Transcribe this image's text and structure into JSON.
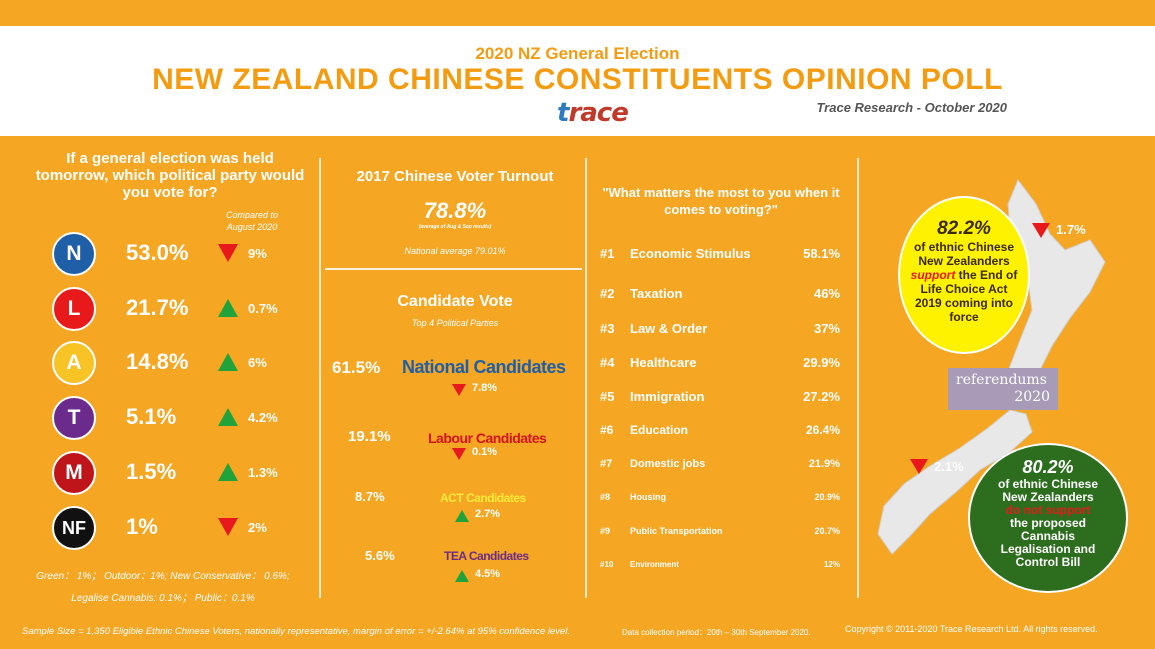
{
  "header": {
    "subtitle": "2020 NZ General Election",
    "title": "NEW ZEALAND CHINESE CONSTITUENTS OPINION POLL",
    "logo": "trace",
    "credit": "Trace Research - October 2020"
  },
  "poll": {
    "question": "If a general election was held tomorrow, which political party would you vote for?",
    "compared_label": "Compared to August 2020",
    "parties": [
      {
        "letter": "N",
        "pct": "53.0%",
        "change": "9%",
        "direction": "down",
        "color": "#1f5fa8"
      },
      {
        "letter": "L",
        "pct": "21.7%",
        "change": "0.7%",
        "direction": "up",
        "color": "#e8191b"
      },
      {
        "letter": "A",
        "pct": "14.8%",
        "change": "6%",
        "direction": "up",
        "color": "#f7c325"
      },
      {
        "letter": "T",
        "pct": "5.1%",
        "change": "4.2%",
        "direction": "up",
        "color": "#6a2b8c"
      },
      {
        "letter": "M",
        "pct": "1.5%",
        "change": "1.3%",
        "direction": "up",
        "color": "#c0141b"
      },
      {
        "letter": "NF",
        "pct": "1%",
        "change": "2%",
        "direction": "down",
        "color": "#111111"
      }
    ],
    "others_line1": "Green： 1%； Outdoor：1%; New Conservative： 0.6%;",
    "others_line2": "Legalise Cannabis: 0.1%； Public：0.1%"
  },
  "turnout": {
    "title": "2017 Chinese Voter Turnout",
    "value": "78.8%",
    "note": "(average of Aug & Sep results)",
    "national": "National average 79.01%"
  },
  "candidate_vote": {
    "title": "Candidate Vote",
    "subtitle": "Top 4 Political Parties",
    "items": [
      {
        "pct": "61.5%",
        "name": "National Candidates",
        "change": "7.8%",
        "direction": "down",
        "color": "#1f5fa8"
      },
      {
        "pct": "19.1%",
        "name": "Labour Candidates",
        "change": "0.1%",
        "direction": "down",
        "color": "#d6141b"
      },
      {
        "pct": "8.7%",
        "name": "ACT Candidates",
        "change": "2.7%",
        "direction": "up",
        "color": "#ffeb3b"
      },
      {
        "pct": "5.6%",
        "name": "TEA Candidates",
        "change": "4.5%",
        "direction": "up",
        "color": "#6a2b8c"
      }
    ]
  },
  "issues": {
    "question": "\"What matters the most to you when it comes to voting?\"",
    "items": [
      {
        "rank": "#1",
        "label": "Economic Stimulus",
        "value": "58.1%"
      },
      {
        "rank": "#2",
        "label": "Taxation",
        "value": "46%"
      },
      {
        "rank": "#3",
        "label": "Law & Order",
        "value": "37%"
      },
      {
        "rank": "#4",
        "label": "Healthcare",
        "value": "29.9%"
      },
      {
        "rank": "#5",
        "label": "Immigration",
        "value": "27.2%"
      },
      {
        "rank": "#6",
        "label": "Education",
        "value": "26.4%"
      },
      {
        "rank": "#7",
        "label": "Domestic jobs",
        "value": "21.9%"
      },
      {
        "rank": "#8",
        "label": "Housing",
        "value": "20.9%"
      },
      {
        "rank": "#9",
        "label": "Public Transportation",
        "value": "20.7%"
      },
      {
        "rank": "#10",
        "label": "Environment",
        "value": "12%"
      }
    ]
  },
  "referendums": {
    "badge_line1": "referendums",
    "badge_line2": "2020",
    "end_of_life": {
      "pct": "82.2%",
      "text1": "of ethnic Chinese New Zealanders",
      "emph": "support",
      "text2": "the End of Life Choice Act 2019 coming into force",
      "change": "1.7%"
    },
    "cannabis": {
      "pct": "80.2%",
      "text1": "of ethnic Chinese New Zealanders",
      "emph": "do not support",
      "text2": "the proposed Cannabis Legalisation and Control Bill",
      "change": "2.1%"
    }
  },
  "footer": {
    "sample": "Sample Size = 1,350 Eligible Ethnic Chinese Voters, nationally representative, margin of error = +/-2.64% at 95% confidence level.",
    "period": "Data collection period：20th – 30th September 2020.",
    "copyright": "Copyright © 2011-2020 Trace Research Ltd. All rights reserved."
  },
  "colors": {
    "background": "#f5a623",
    "title": "#f39c12",
    "up": "#1fa33a",
    "down": "#e8191b"
  }
}
